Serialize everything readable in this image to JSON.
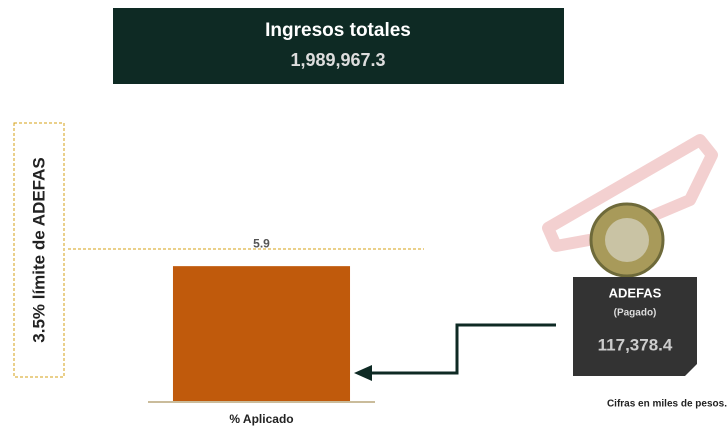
{
  "header": {
    "title": "Ingresos totales",
    "value": "1,989,967.3"
  },
  "limit_label": "3.5% límite de ADEFAS",
  "card": {
    "title": "ADEFAS",
    "subtitle": "(Pagado)",
    "value": "117,378.4"
  },
  "note": "Cifras en miles de pesos.",
  "chart_data": {
    "type": "bar",
    "categories": [
      "% Aplicado"
    ],
    "values": [
      5.9
    ],
    "color": "#c05a0c",
    "ylim": [
      0,
      7
    ]
  }
}
